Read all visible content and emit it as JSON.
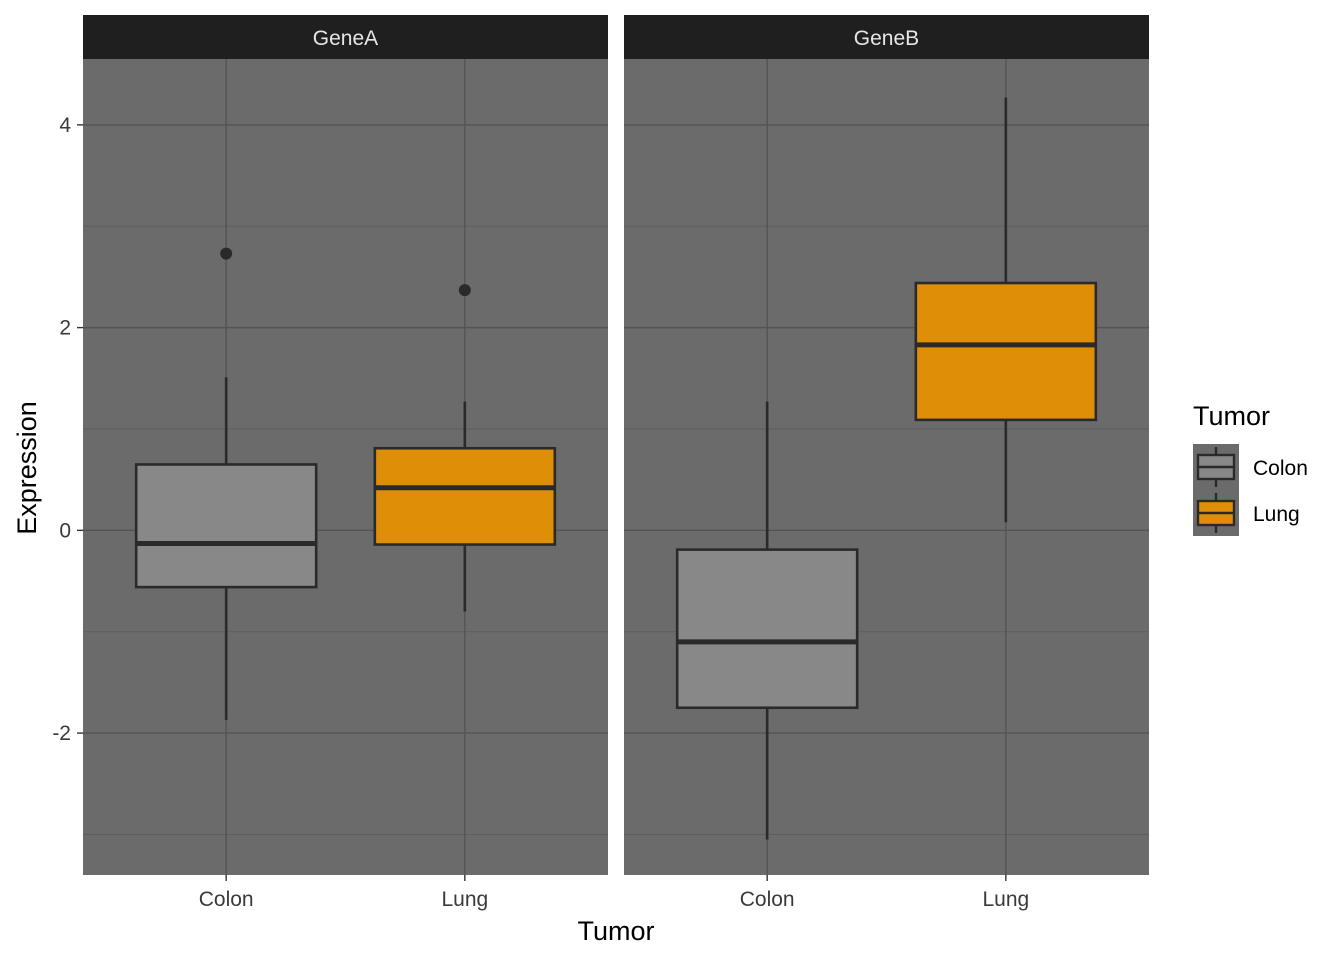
{
  "chart_data": {
    "type": "box",
    "xlabel": "Tumor",
    "ylabel": "Expression",
    "ylim": [
      -3.4,
      4.65
    ],
    "y_ticks": [
      -2,
      0,
      2,
      4
    ],
    "y_tick_labels": [
      "-2",
      "0",
      "2",
      "4"
    ],
    "categories": [
      "Colon",
      "Lung"
    ],
    "grid": true,
    "legend": {
      "title": "Tumor",
      "position": "right",
      "entries": [
        "Colon",
        "Lung"
      ]
    },
    "colors": {
      "Colon": "#888888",
      "Lung": "#df8e08",
      "panel_background": "#6b6b6b",
      "strip_background": "#1f1f1f",
      "box_line": "#2a2a2a"
    },
    "panels": [
      {
        "label": "GeneA",
        "boxes": [
          {
            "category": "Colon",
            "whisker_low": -1.87,
            "q1": -0.56,
            "median": -0.13,
            "q3": 0.65,
            "whisker_high": 1.51,
            "outliers": [
              2.73
            ]
          },
          {
            "category": "Lung",
            "whisker_low": -0.8,
            "q1": -0.14,
            "median": 0.42,
            "q3": 0.81,
            "whisker_high": 1.27,
            "outliers": [
              2.37
            ]
          }
        ]
      },
      {
        "label": "GeneB",
        "boxes": [
          {
            "category": "Colon",
            "whisker_low": -3.05,
            "q1": -1.75,
            "median": -1.1,
            "q3": -0.19,
            "whisker_high": 1.27,
            "outliers": []
          },
          {
            "category": "Lung",
            "whisker_low": 0.08,
            "q1": 1.09,
            "median": 1.83,
            "q3": 2.44,
            "whisker_high": 4.27,
            "outliers": []
          }
        ]
      }
    ]
  }
}
